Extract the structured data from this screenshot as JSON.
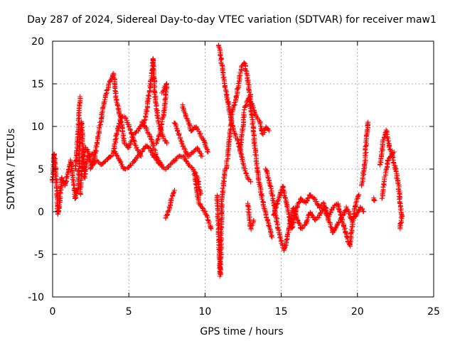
{
  "chart_data": {
    "type": "scatter",
    "title": "Day 287 of 2024, Sidereal Day-to-day VTEC variation (SDTVAR) for receiver maw1",
    "xlabel": "GPS time / hours",
    "ylabel": "SDTVAR / TECUs",
    "xlim": [
      0,
      25
    ],
    "ylim": [
      -10,
      20
    ],
    "xticks": [
      0,
      5,
      10,
      15,
      20,
      25
    ],
    "yticks": [
      -10,
      -5,
      0,
      5,
      10,
      15,
      20
    ],
    "grid": true,
    "marker": "+",
    "color": "#ff0000",
    "series": [
      {
        "name": "SDTVAR",
        "segments": [
          [
            [
              0.0,
              3.5
            ],
            [
              0.1,
              6.8
            ],
            [
              0.2,
              5.0
            ],
            [
              0.3,
              2.0
            ],
            [
              0.35,
              -0.3
            ],
            [
              0.45,
              1.0
            ],
            [
              0.6,
              4.0
            ],
            [
              0.8,
              3.0
            ],
            [
              1.0,
              4.5
            ],
            [
              1.2,
              6.0
            ],
            [
              1.4,
              3.0
            ],
            [
              1.5,
              1.5
            ],
            [
              1.7,
              3.0
            ],
            [
              1.8,
              9.0
            ],
            [
              1.9,
              10.5
            ],
            [
              2.1,
              4.0
            ],
            [
              2.3,
              6.5
            ],
            [
              2.6,
              5.5
            ],
            [
              2.9,
              6.0
            ],
            [
              3.2,
              5.5
            ],
            [
              3.5,
              6.0
            ],
            [
              3.8,
              6.5
            ],
            [
              4.1,
              7.0
            ],
            [
              4.4,
              6.0
            ],
            [
              4.7,
              5.0
            ],
            [
              5.0,
              5.2
            ],
            [
              5.3,
              5.8
            ],
            [
              5.6,
              6.5
            ],
            [
              5.9,
              7.2
            ],
            [
              6.2,
              7.8
            ],
            [
              6.5,
              7.0
            ],
            [
              6.8,
              6.0
            ],
            [
              7.1,
              5.5
            ],
            [
              7.4,
              5.0
            ],
            [
              7.7,
              5.5
            ],
            [
              8.0,
              6.0
            ],
            [
              8.3,
              6.5
            ],
            [
              8.6,
              6.5
            ],
            [
              8.9,
              5.5
            ],
            [
              9.2,
              5.0
            ],
            [
              9.5,
              4.0
            ],
            [
              9.7,
              2.0
            ]
          ],
          [
            [
              1.8,
              2.0
            ],
            [
              2.0,
              7.0
            ],
            [
              2.2,
              7.5
            ],
            [
              2.5,
              6.5
            ],
            [
              2.8,
              7.0
            ]
          ],
          [
            [
              2.5,
              5.0
            ],
            [
              2.8,
              6.8
            ],
            [
              3.1,
              10.0
            ],
            [
              3.4,
              13.0
            ],
            [
              3.7,
              15.0
            ],
            [
              4.0,
              16.2
            ],
            [
              4.2,
              13.0
            ],
            [
              4.5,
              10.5
            ],
            [
              4.7,
              8.0
            ],
            [
              5.0,
              7.5
            ],
            [
              5.3,
              9.0
            ],
            [
              5.6,
              9.5
            ],
            [
              5.9,
              10.5
            ],
            [
              6.2,
              9.5
            ],
            [
              6.5,
              8.5
            ],
            [
              6.8,
              6.5
            ],
            [
              7.1,
              5.5
            ]
          ],
          [
            [
              1.5,
              5.0
            ],
            [
              1.7,
              10.0
            ],
            [
              1.8,
              13.5
            ]
          ],
          [
            [
              4.0,
              7.0
            ],
            [
              4.2,
              9.0
            ],
            [
              4.5,
              11.2
            ],
            [
              4.8,
              11.0
            ],
            [
              5.1,
              9.5
            ],
            [
              5.5,
              7.5
            ],
            [
              5.8,
              6.5
            ]
          ],
          [
            [
              5.9,
              10.0
            ],
            [
              6.1,
              11.0
            ],
            [
              6.3,
              13.5
            ],
            [
              6.5,
              16.0
            ],
            [
              6.6,
              18.0
            ],
            [
              6.7,
              14.0
            ],
            [
              6.9,
              11.0
            ],
            [
              7.1,
              9.5
            ],
            [
              7.3,
              8.5
            ],
            [
              7.5,
              8.0
            ]
          ],
          [
            [
              7.2,
              14.0
            ],
            [
              7.5,
              15.0
            ],
            [
              7.3,
              11.5
            ],
            [
              7.0,
              9.0
            ],
            [
              6.8,
              8.0
            ]
          ],
          [
            [
              7.4,
              -0.8
            ],
            [
              7.6,
              0.0
            ],
            [
              7.8,
              1.5
            ],
            [
              8.0,
              2.5
            ]
          ],
          [
            [
              8.0,
              10.5
            ],
            [
              8.3,
              9.0
            ],
            [
              8.6,
              7.5
            ],
            [
              8.9,
              6.5
            ],
            [
              9.2,
              7.0
            ],
            [
              9.5,
              7.5
            ],
            [
              9.8,
              6.5
            ]
          ],
          [
            [
              8.5,
              12.5
            ],
            [
              8.8,
              11.0
            ],
            [
              9.1,
              9.5
            ],
            [
              9.4,
              10.0
            ],
            [
              9.7,
              9.0
            ],
            [
              10.0,
              8.0
            ],
            [
              10.2,
              7.0
            ]
          ],
          [
            [
              9.3,
              4.5
            ],
            [
              9.6,
              1.0
            ],
            [
              10.0,
              0.0
            ],
            [
              10.4,
              -2.0
            ]
          ],
          [
            [
              10.8,
              2.0
            ],
            [
              11.0,
              -7.5
            ],
            [
              11.1,
              1.0
            ],
            [
              11.3,
              5.0
            ]
          ],
          [
            [
              10.9,
              19.5
            ],
            [
              11.0,
              18.5
            ],
            [
              11.2,
              16.0
            ],
            [
              11.4,
              14.0
            ],
            [
              11.6,
              12.0
            ],
            [
              11.8,
              10.0
            ],
            [
              12.0,
              9.0
            ],
            [
              12.2,
              8.0
            ],
            [
              12.4,
              6.5
            ],
            [
              12.6,
              5.0
            ],
            [
              12.8,
              4.0
            ],
            [
              13.0,
              3.5
            ]
          ],
          [
            [
              11.4,
              5.0
            ],
            [
              11.6,
              8.5
            ],
            [
              11.8,
              12.0
            ],
            [
              12.0,
              13.0
            ],
            [
              12.2,
              15.0
            ],
            [
              12.4,
              17.0
            ],
            [
              12.6,
              17.5
            ],
            [
              12.8,
              15.5
            ],
            [
              13.0,
              13.0
            ],
            [
              13.2,
              12.0
            ],
            [
              13.4,
              11.0
            ],
            [
              13.6,
              10.5
            ],
            [
              13.8,
              9.0
            ],
            [
              14.0,
              10.0
            ],
            [
              14.2,
              9.5
            ]
          ],
          [
            [
              12.3,
              7.0
            ],
            [
              12.6,
              12.0
            ],
            [
              12.9,
              13.5
            ],
            [
              13.1,
              11.0
            ],
            [
              13.3,
              7.0
            ],
            [
              13.5,
              4.0
            ],
            [
              13.8,
              1.0
            ],
            [
              14.1,
              -1.0
            ],
            [
              14.4,
              -3.0
            ]
          ],
          [
            [
              12.8,
              1.0
            ],
            [
              13.0,
              -2.0
            ],
            [
              13.2,
              -1.0
            ]
          ],
          [
            [
              14.0,
              5.0
            ],
            [
              14.3,
              3.0
            ],
            [
              14.5,
              1.0
            ],
            [
              14.8,
              -2.0
            ],
            [
              15.0,
              -3.5
            ],
            [
              15.2,
              -4.5
            ],
            [
              15.4,
              -3.0
            ],
            [
              15.6,
              -1.0
            ],
            [
              15.8,
              0.5
            ],
            [
              16.0,
              -0.5
            ],
            [
              16.3,
              -2.0
            ],
            [
              16.6,
              -1.5
            ],
            [
              16.9,
              0.0
            ],
            [
              17.2,
              -1.0
            ],
            [
              17.5,
              -0.5
            ],
            [
              17.8,
              0.5
            ],
            [
              18.1,
              -1.0
            ],
            [
              18.4,
              -2.5
            ],
            [
              18.7,
              -1.5
            ],
            [
              19.0,
              -0.5
            ],
            [
              19.3,
              0.5
            ],
            [
              19.6,
              -1.0
            ],
            [
              19.9,
              -0.5
            ],
            [
              20.2,
              0.5
            ],
            [
              20.4,
              0.0
            ]
          ],
          [
            [
              14.5,
              -0.5
            ],
            [
              14.8,
              1.5
            ],
            [
              15.1,
              3.0
            ],
            [
              15.4,
              0.5
            ],
            [
              15.7,
              -2.0
            ],
            [
              16.0,
              0.5
            ],
            [
              16.3,
              1.5
            ],
            [
              16.6,
              1.0
            ],
            [
              16.9,
              2.0
            ],
            [
              17.2,
              1.5
            ],
            [
              17.5,
              0.5
            ],
            [
              17.8,
              1.0
            ],
            [
              18.1,
              -0.5
            ],
            [
              18.4,
              0.5
            ],
            [
              18.7,
              1.0
            ],
            [
              19.0,
              -1.0
            ],
            [
              19.3,
              -3.0
            ],
            [
              19.5,
              -4.0
            ],
            [
              19.7,
              -1.0
            ],
            [
              19.9,
              1.0
            ],
            [
              20.1,
              2.0
            ]
          ],
          [
            [
              20.3,
              3.0
            ],
            [
              20.5,
              6.0
            ],
            [
              20.6,
              9.0
            ],
            [
              20.7,
              10.5
            ]
          ],
          [
            [
              21.1,
              1.5
            ]
          ],
          [
            [
              21.5,
              5.5
            ],
            [
              21.7,
              8.5
            ],
            [
              21.9,
              9.5
            ],
            [
              22.1,
              7.5
            ],
            [
              22.3,
              6.5
            ],
            [
              22.5,
              5.0
            ],
            [
              22.7,
              3.0
            ],
            [
              22.8,
              1.0
            ],
            [
              22.9,
              -0.5
            ],
            [
              22.8,
              -2.0
            ]
          ],
          [
            [
              21.6,
              1.5
            ],
            [
              21.8,
              4.0
            ],
            [
              22.0,
              6.0
            ],
            [
              22.2,
              6.5
            ],
            [
              22.4,
              7.0
            ]
          ]
        ]
      }
    ]
  }
}
